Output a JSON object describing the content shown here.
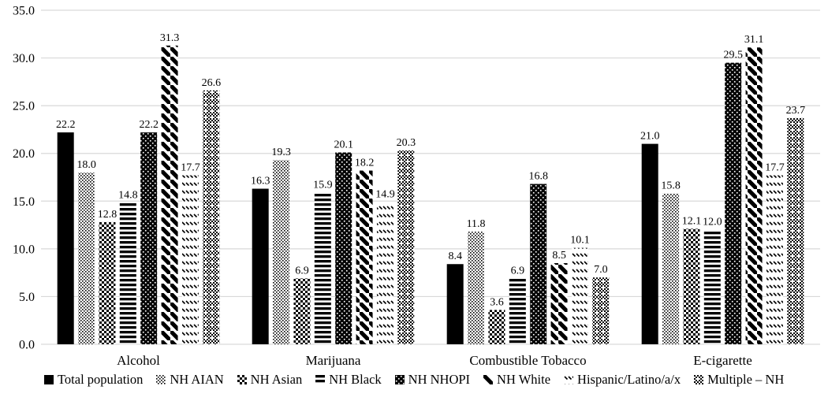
{
  "chart_data": {
    "type": "bar",
    "title": "",
    "xlabel": "",
    "ylabel": "",
    "categories": [
      "Alcohol",
      "Marijuana",
      "Combustible Tobacco",
      "E-cigarette"
    ],
    "series": [
      {
        "name": "Total population",
        "pattern": "solid",
        "values": [
          22.2,
          16.3,
          8.4,
          21.0
        ]
      },
      {
        "name": "NH AIAN",
        "pattern": "dots-light",
        "values": [
          18.0,
          19.3,
          11.8,
          15.8
        ]
      },
      {
        "name": "NH Asian",
        "pattern": "checker",
        "values": [
          12.8,
          6.9,
          3.6,
          12.1
        ]
      },
      {
        "name": "NH Black",
        "pattern": "hlines",
        "values": [
          14.8,
          15.9,
          6.9,
          12.0
        ]
      },
      {
        "name": "NH NHOPI",
        "pattern": "dots-dark",
        "values": [
          22.2,
          20.1,
          16.8,
          29.5
        ]
      },
      {
        "name": "NH White",
        "pattern": "diag-wide",
        "values": [
          31.3,
          18.2,
          8.5,
          31.1
        ]
      },
      {
        "name": "Hispanic/Latino/a/x",
        "pattern": "diag-dash",
        "values": [
          17.7,
          14.9,
          10.1,
          17.7
        ]
      },
      {
        "name": "Multiple – NH",
        "pattern": "checker-fine",
        "values": [
          26.6,
          20.3,
          7.0,
          23.7
        ]
      }
    ],
    "ylim": [
      0,
      35
    ],
    "ytick_step": 5,
    "ytick_labels": [
      "0.0",
      "5.0",
      "10.0",
      "15.0",
      "20.0",
      "25.0",
      "30.0",
      "35.0"
    ],
    "grid": true,
    "value_labels": true,
    "value_label_decimals": 1,
    "legend_position": "bottom",
    "colors": {
      "bar": "#000000",
      "gridline": "#d9d9d9",
      "background": "#ffffff",
      "text": "#000000"
    }
  }
}
